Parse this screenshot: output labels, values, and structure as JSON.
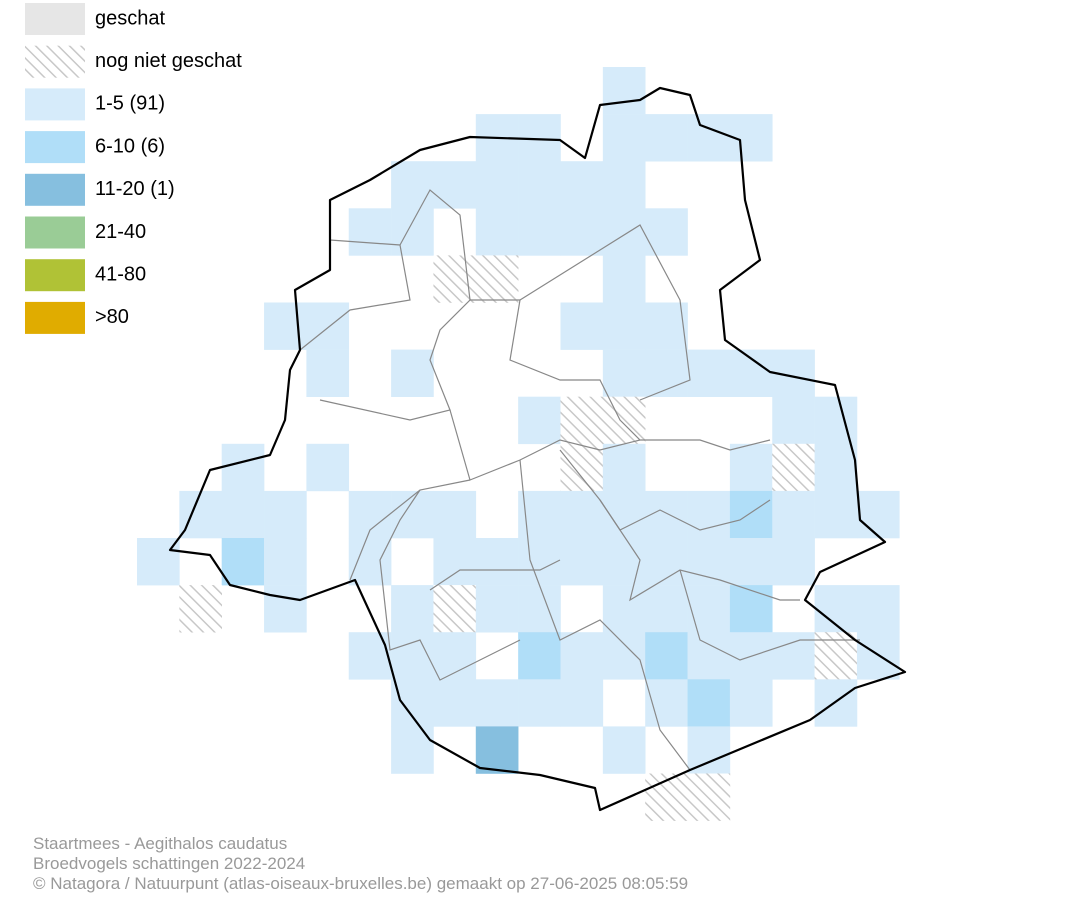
{
  "legend": [
    {
      "label": "geschat",
      "color": "#e6e6e6"
    },
    {
      "label": "nog niet geschat",
      "color": "hatch"
    },
    {
      "label": "1-5 (91)",
      "color": "#d6ebfa"
    },
    {
      "label": "6-10 (6)",
      "color": "#b0def8"
    },
    {
      "label": "11-20 (1)",
      "color": "#86bfdf"
    },
    {
      "label": "21-40",
      "color": "#9acc96"
    },
    {
      "label": "41-80",
      "color": "#b0c236"
    },
    {
      "label": ">80",
      "color": "#e0ac00"
    }
  ],
  "footer": {
    "lines": [
      "Staartmees - Aegithalos caudatus",
      "Broedvogels schattingen 2022-2024",
      "© Natagora / Natuurpunt (atlas-oiseaux-bruxelles.be) gemaakt op 27-06-2025 08:05:59"
    ]
  }
}
